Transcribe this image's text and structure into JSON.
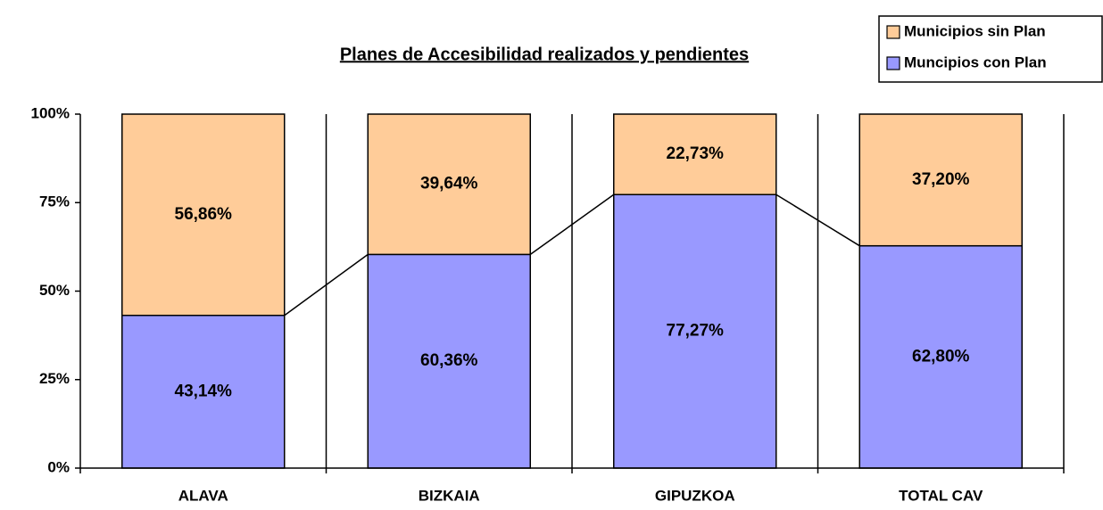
{
  "chart_data": {
    "type": "stacked_bar",
    "title": "Planes de Accesibilidad realizados y pendientes",
    "categories": [
      "ALAVA",
      "BIZKAIA",
      "GIPUZKOA",
      "TOTAL CAV"
    ],
    "series": [
      {
        "name": "Muncipios con Plan",
        "color": "#9999ff",
        "values": [
          43.14,
          60.36,
          77.27,
          62.8
        ],
        "value_labels": [
          "43,14%",
          "60,36%",
          "77,27%",
          "62,80%"
        ]
      },
      {
        "name": "Municipios sin Plan",
        "color": "#ffcc99",
        "values": [
          56.86,
          39.64,
          22.73,
          37.2
        ],
        "value_labels": [
          "56,86%",
          "39,64%",
          "22,73%",
          "37,20%"
        ]
      }
    ],
    "ylim": [
      0,
      100
    ],
    "yticks": [
      {
        "value": 0,
        "label": "0%"
      },
      {
        "value": 25,
        "label": "25%"
      },
      {
        "value": 50,
        "label": "50%"
      },
      {
        "value": 75,
        "label": "75%"
      },
      {
        "value": 100,
        "label": "100%"
      }
    ],
    "vertical_grid": true,
    "series_lines": true,
    "legend": "top-right"
  }
}
